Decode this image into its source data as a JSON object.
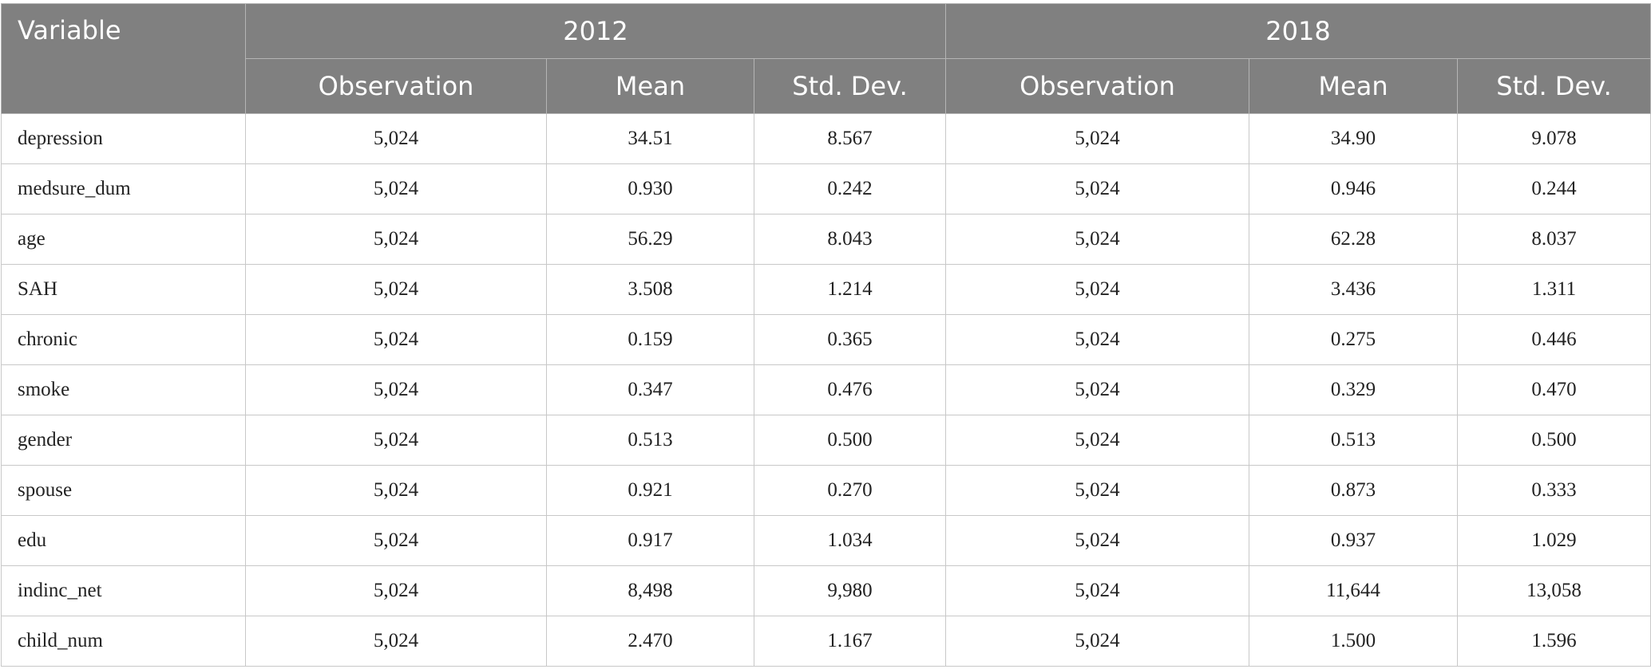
{
  "header": {
    "variable": "Variable",
    "groups": [
      "2012",
      "2018"
    ],
    "columns": [
      "Observation",
      "Mean",
      "Std. Dev.",
      "Observation",
      "Mean",
      "Std. Dev."
    ]
  },
  "table": {
    "rows": [
      [
        "depression",
        "5,024",
        "34.51",
        "8.567",
        "5,024",
        "34.90",
        "9.078"
      ],
      [
        "medsure_dum",
        "5,024",
        "0.930",
        "0.242",
        "5,024",
        "0.946",
        "0.244"
      ],
      [
        "age",
        "5,024",
        "56.29",
        "8.043",
        "5,024",
        "62.28",
        "8.037"
      ],
      [
        "SAH",
        "5,024",
        "3.508",
        "1.214",
        "5,024",
        "3.436",
        "1.311"
      ],
      [
        "chronic",
        "5,024",
        "0.159",
        "0.365",
        "5,024",
        "0.275",
        "0.446"
      ],
      [
        "smoke",
        "5,024",
        "0.347",
        "0.476",
        "5,024",
        "0.329",
        "0.470"
      ],
      [
        "gender",
        "5,024",
        "0.513",
        "0.500",
        "5,024",
        "0.513",
        "0.500"
      ],
      [
        "spouse",
        "5,024",
        "0.921",
        "0.270",
        "5,024",
        "0.873",
        "0.333"
      ],
      [
        "edu",
        "5,024",
        "0.917",
        "1.034",
        "5,024",
        "0.937",
        "1.029"
      ],
      [
        "indinc_net",
        "5,024",
        "8,498",
        "9,980",
        "5,024",
        "11,644",
        "13,058"
      ],
      [
        "child_num",
        "5,024",
        "2.470",
        "1.167",
        "5,024",
        "1.500",
        "1.596"
      ]
    ]
  }
}
